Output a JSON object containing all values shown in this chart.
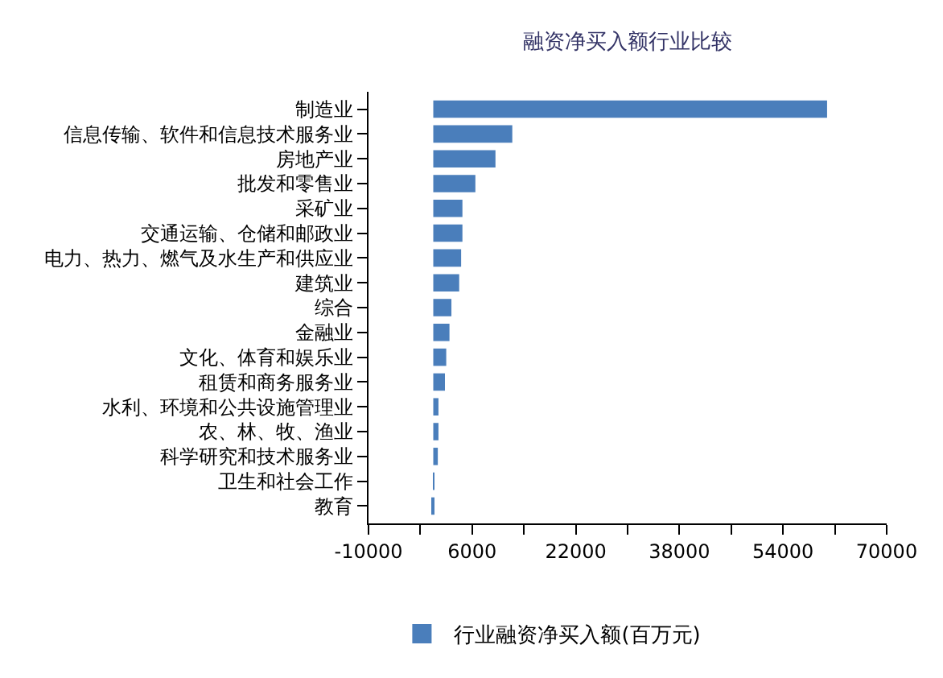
{
  "chart_data": {
    "type": "bar",
    "orientation": "horizontal",
    "title": "融资净买入额行业比较",
    "categories": [
      "制造业",
      "信息传输、软件和信息技术服务业",
      "房地产业",
      "批发和零售业",
      "采矿业",
      "交通运输、仓储和邮政业",
      "电力、热力、燃气及水生产和供应业",
      "建筑业",
      "综合",
      "金融业",
      "文化、体育和娱乐业",
      "租赁和商务服务业",
      "水利、环境和公共设施管理业",
      "农、林、牧、渔业",
      "科学研究和技术服务业",
      "卫生和社会工作",
      "教育"
    ],
    "series": [
      {
        "name": "行业融资净买入额(百万元)",
        "color": "#4a7ebb",
        "values": [
          60800,
          12200,
          9600,
          6500,
          4500,
          4500,
          4300,
          4000,
          2800,
          2500,
          2000,
          1800,
          800,
          800,
          700,
          100,
          -300
        ]
      }
    ],
    "xlim": [
      -10000,
      70000
    ],
    "xticks": [
      -10000,
      {
        "value": -2000,
        "label": null
      },
      6000,
      {
        "value": 14000,
        "label": null
      },
      22000,
      {
        "value": 30000,
        "label": null
      },
      38000,
      {
        "value": 46000,
        "label": null
      },
      54000,
      {
        "value": 62000,
        "label": null
      },
      70000
    ],
    "grid": false,
    "legend": "bottom"
  }
}
